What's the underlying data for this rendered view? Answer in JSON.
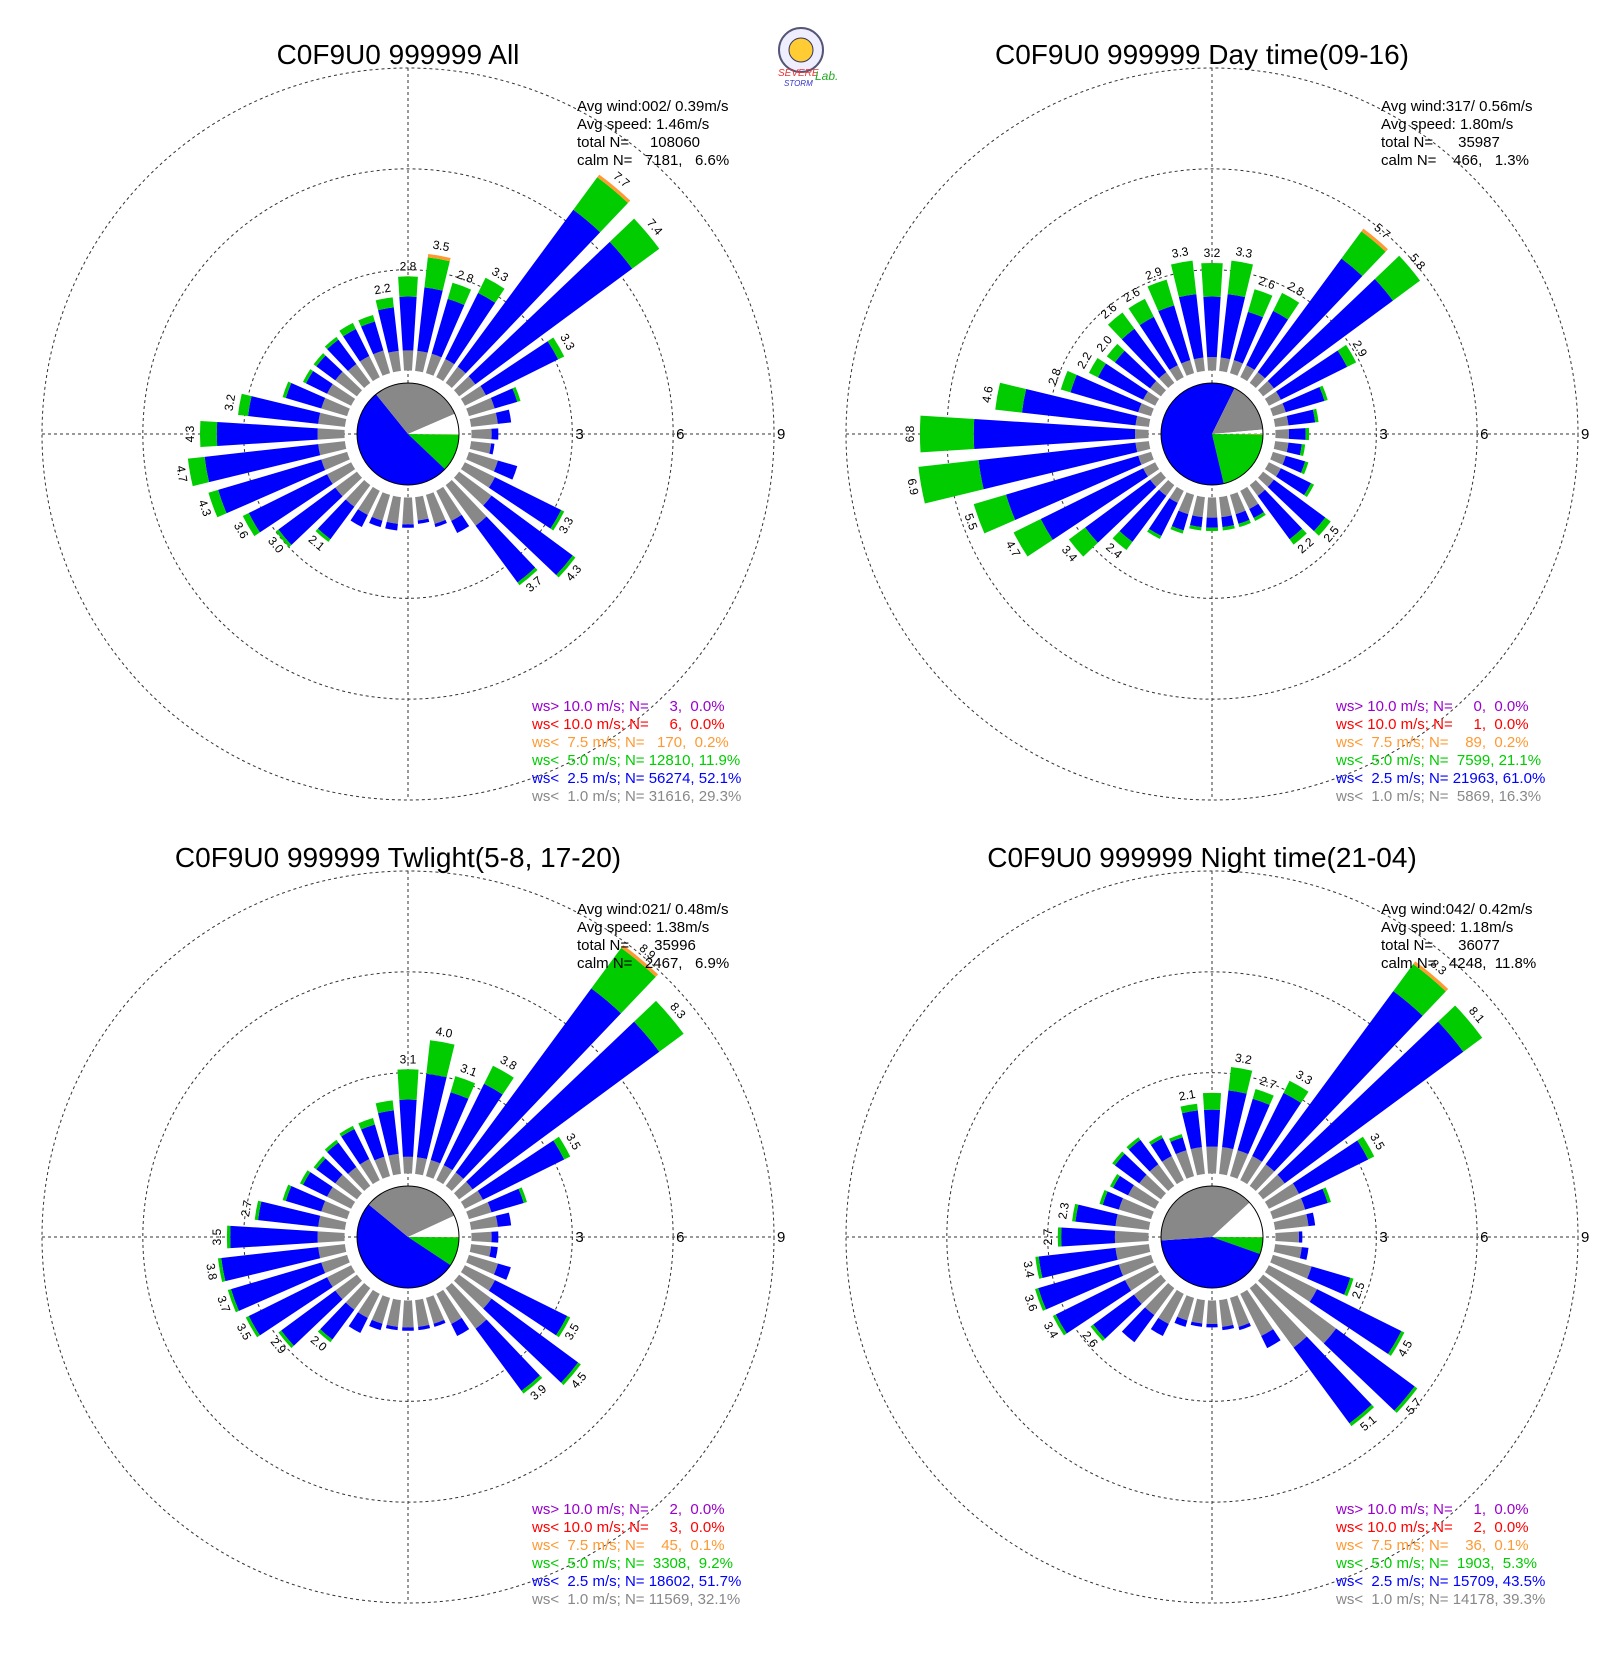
{
  "logo": [
    "SEVERE",
    "STORM",
    "Lab."
  ],
  "chart_data": [
    {
      "type": "windrose",
      "title": "C0F9U0 999999 All",
      "info": [
        "Avg wind:002/ 0.39m/s",
        "Avg speed: 1.46m/s",
        "total N=     108060",
        "calm N=   7181,   6.6%"
      ],
      "legend": [
        {
          "text": "ws> 10.0 m/s; N=     3,  0.0%",
          "color": "#9900cc"
        },
        {
          "text": "ws< 10.0 m/s; N=     6,  0.0%",
          "color": "#ff0000"
        },
        {
          "text": "ws<  7.5 m/s; N=   170,  0.2%",
          "color": "#ff9933"
        },
        {
          "text": "ws<  5.0 m/s; N= 12810, 11.9%",
          "color": "#00cc00"
        },
        {
          "text": "ws<  2.5 m/s; N= 56274, 52.1%",
          "color": "#0000ff"
        },
        {
          "text": "ws<  1.0 m/s; N= 31616, 29.3%",
          "color": "#888888"
        }
      ],
      "rlim": [
        0,
        9
      ],
      "rticks": [
        3,
        6,
        9
      ],
      "calm": 6.6,
      "series": [
        {
          "color": "#888888",
          "share": 29.3,
          "values": [
            0.6,
            0.6,
            0.6,
            0.6,
            0.6,
            0.6,
            0.7,
            0.8,
            0.8,
            0.6,
            0.6,
            0.9,
            1.0,
            1.2,
            1.5,
            1.0,
            0.9,
            0.7,
            0.8,
            0.8,
            0.8,
            0.8,
            0.8,
            0.8,
            0.8,
            0.8,
            0.8,
            0.8,
            0.8,
            0.8,
            0.8,
            0.8,
            0.7,
            0.7,
            0.7,
            0.6
          ]
        },
        {
          "color": "#0000ff",
          "share": 52.1,
          "values": [
            1.6,
            1.9,
            1.7,
            2.2,
            5.8,
            5.8,
            2.4,
            0.7,
            0.4,
            0.2,
            0.1,
            0.6,
            2.2,
            3.0,
            2.1,
            0.4,
            0.1,
            0.1,
            0.1,
            0.2,
            0.2,
            0.4,
            1.2,
            2.1,
            2.6,
            3.2,
            3.4,
            3.0,
            2.1,
            1.1,
            0.7,
            0.7,
            0.9,
            0.9,
            0.9,
            1.3
          ]
        },
        {
          "color": "#00cc00",
          "share": 11.9,
          "values": [
            0.6,
            0.9,
            0.5,
            0.5,
            1.2,
            1.0,
            0.2,
            0.1,
            0,
            0,
            0,
            0,
            0.1,
            0.1,
            0.1,
            0,
            0,
            0,
            0,
            0,
            0,
            0,
            0.1,
            0.1,
            0.2,
            0.3,
            0.5,
            0.5,
            0.3,
            0.1,
            0.1,
            0.1,
            0.1,
            0.2,
            0.2,
            0.3
          ]
        },
        {
          "color": "#ff9933",
          "share": 0.2,
          "values": [
            0,
            0.1,
            0,
            0,
            0.1,
            0,
            0,
            0,
            0,
            0,
            0,
            0,
            0,
            0,
            0,
            0,
            0,
            0,
            0,
            0,
            0,
            0,
            0,
            0,
            0,
            0,
            0,
            0,
            0,
            0,
            0,
            0,
            0,
            0,
            0,
            0
          ]
        }
      ],
      "total_labels": [
        "2.8",
        "3.5",
        "2.8",
        "3.3",
        "7.7",
        "7.4",
        "3.3",
        null,
        null,
        null,
        null,
        null,
        "3.3",
        "4.3",
        "3.7",
        null,
        null,
        null,
        null,
        null,
        null,
        null,
        "2.1",
        "3.0",
        "3.6",
        "4.3",
        "4.7",
        "4.3",
        "3.2",
        null,
        null,
        null,
        null,
        null,
        null,
        "2.2"
      ]
    },
    {
      "type": "windrose",
      "title": "C0F9U0 999999 Day time(09-16)",
      "info": [
        "Avg wind:317/ 0.56m/s",
        "Avg speed: 1.80m/s",
        "total N=      35987",
        "calm N=    466,   1.3%"
      ],
      "legend": [
        {
          "text": "ws> 10.0 m/s; N=     0,  0.0%",
          "color": "#9900cc"
        },
        {
          "text": "ws< 10.0 m/s; N=     1,  0.0%",
          "color": "#ff0000"
        },
        {
          "text": "ws<  7.5 m/s; N=    89,  0.2%",
          "color": "#ff9933"
        },
        {
          "text": "ws<  5.0 m/s; N=  7599, 21.1%",
          "color": "#00cc00"
        },
        {
          "text": "ws<  2.5 m/s; N= 21963, 61.0%",
          "color": "#0000ff"
        },
        {
          "text": "ws<  1.0 m/s; N=  5869, 16.3%",
          "color": "#888888"
        }
      ],
      "rlim": [
        0,
        9
      ],
      "rticks": [
        3,
        6,
        9
      ],
      "calm": 1.3,
      "series": [
        {
          "color": "#888888",
          "share": 16.3,
          "values": [
            0.4,
            0.4,
            0.4,
            0.4,
            0.4,
            0.4,
            0.4,
            0.4,
            0.4,
            0.4,
            0.4,
            0.4,
            0.4,
            0.4,
            0.4,
            0.6,
            0.6,
            0.6,
            0.6,
            0.6,
            0.6,
            0.4,
            0.4,
            0.4,
            0.4,
            0.4,
            0.4,
            0.4,
            0.4,
            0.4,
            0.4,
            0.4,
            0.4,
            0.4,
            0.4,
            0.4
          ]
        },
        {
          "color": "#0000ff",
          "share": 61.0,
          "values": [
            1.8,
            1.9,
            1.5,
            1.8,
            4.2,
            4.4,
            2.2,
            1.2,
            0.8,
            0.5,
            0.4,
            0.6,
            1.0,
            1.9,
            1.6,
            0.3,
            0.3,
            0.3,
            0.3,
            0.3,
            0.5,
            1.1,
            1.7,
            2.4,
            3.4,
            4.1,
            4.7,
            4.8,
            3.4,
            2.1,
            1.5,
            1.3,
            1.6,
            1.6,
            1.7,
            1.9
          ]
        },
        {
          "color": "#00cc00",
          "share": 21.1,
          "values": [
            1.0,
            1.0,
            0.7,
            0.6,
            1.0,
            1.0,
            0.3,
            0.1,
            0.1,
            0.1,
            0.1,
            0.1,
            0.1,
            0.2,
            0.2,
            0.1,
            0.1,
            0.1,
            0.1,
            0.1,
            0.1,
            0.1,
            0.3,
            0.6,
            0.9,
            1.0,
            1.8,
            1.6,
            0.8,
            0.3,
            0.3,
            0.3,
            0.6,
            0.6,
            0.8,
            1.0
          ]
        },
        {
          "color": "#ff9933",
          "share": 0.2,
          "values": [
            0,
            0,
            0,
            0,
            0.1,
            0,
            0,
            0,
            0,
            0,
            0,
            0,
            0,
            0,
            0,
            0,
            0,
            0,
            0,
            0,
            0,
            0,
            0,
            0,
            0,
            0,
            0,
            0,
            0,
            0,
            0,
            0,
            0,
            0,
            0,
            0
          ]
        }
      ],
      "total_labels": [
        "3.2",
        "3.3",
        "2.6",
        "2.8",
        "5.7",
        "5.8",
        "2.9",
        null,
        null,
        null,
        null,
        null,
        null,
        "2.5",
        "2.2",
        null,
        null,
        null,
        null,
        null,
        null,
        null,
        "2.4",
        "3.4",
        "4.7",
        "5.5",
        "6.9",
        "6.8",
        "4.6",
        "2.8",
        "2.2",
        "2.0",
        "2.6",
        "2.6",
        "2.9",
        "3.3"
      ]
    },
    {
      "type": "windrose",
      "title": "C0F9U0 999999 Twlight(5-8, 17-20)",
      "info": [
        "Avg wind:021/ 0.48m/s",
        "Avg speed: 1.38m/s",
        "total N=      35996",
        "calm N=   2467,   6.9%"
      ],
      "legend": [
        {
          "text": "ws> 10.0 m/s; N=     2,  0.0%",
          "color": "#9900cc"
        },
        {
          "text": "ws< 10.0 m/s; N=     3,  0.0%",
          "color": "#ff0000"
        },
        {
          "text": "ws<  7.5 m/s; N=    45,  0.1%",
          "color": "#ff9933"
        },
        {
          "text": "ws<  5.0 m/s; N=  3308,  9.2%",
          "color": "#00cc00"
        },
        {
          "text": "ws<  2.5 m/s; N= 18602, 51.7%",
          "color": "#0000ff"
        },
        {
          "text": "ws<  1.0 m/s; N= 11569, 32.1%",
          "color": "#888888"
        }
      ],
      "rlim": [
        0,
        9
      ],
      "rticks": [
        3,
        6,
        9
      ],
      "calm": 6.9,
      "series": [
        {
          "color": "#888888",
          "share": 32.1,
          "values": [
            0.5,
            0.5,
            0.5,
            0.5,
            0.5,
            0.5,
            0.6,
            0.7,
            0.8,
            0.6,
            0.6,
            0.9,
            1.0,
            1.2,
            1.5,
            1.0,
            0.8,
            0.8,
            0.8,
            0.8,
            0.8,
            0.8,
            0.8,
            0.8,
            0.8,
            0.8,
            0.8,
            0.8,
            0.8,
            0.8,
            0.8,
            0.8,
            0.7,
            0.7,
            0.6,
            0.6
          ]
        },
        {
          "color": "#0000ff",
          "share": 51.7,
          "values": [
            1.7,
            2.5,
            2.1,
            2.7,
            6.8,
            6.9,
            2.7,
            1.0,
            0.4,
            0.2,
            0.2,
            0.4,
            2.4,
            3.2,
            2.3,
            0.4,
            0.1,
            0.1,
            0.1,
            0.1,
            0.2,
            0.5,
            1.1,
            2.0,
            2.6,
            2.8,
            2.9,
            2.6,
            1.8,
            1.1,
            0.8,
            0.7,
            0.9,
            1.0,
            1.0,
            1.3
          ]
        },
        {
          "color": "#00cc00",
          "share": 9.2,
          "values": [
            0.9,
            1.0,
            0.5,
            0.6,
            1.5,
            0.9,
            0.2,
            0.1,
            0,
            0,
            0,
            0,
            0.1,
            0.1,
            0.1,
            0,
            0,
            0,
            0,
            0,
            0,
            0,
            0.1,
            0.1,
            0.1,
            0.1,
            0.1,
            0.1,
            0.1,
            0.1,
            0.1,
            0.1,
            0.1,
            0.1,
            0.2,
            0.3
          ]
        },
        {
          "color": "#ff9933",
          "share": 0.1,
          "values": [
            0,
            0,
            0,
            0,
            0.1,
            0,
            0,
            0,
            0,
            0,
            0,
            0,
            0,
            0,
            0,
            0,
            0,
            0,
            0,
            0,
            0,
            0,
            0,
            0,
            0,
            0,
            0,
            0,
            0,
            0,
            0,
            0,
            0,
            0,
            0,
            0
          ]
        }
      ],
      "total_labels": [
        "3.1",
        "4.0",
        "3.1",
        "3.8",
        "8.9",
        "8.3",
        "3.5",
        null,
        null,
        null,
        null,
        null,
        "3.5",
        "4.5",
        "3.9",
        null,
        null,
        null,
        null,
        null,
        null,
        null,
        "2.0",
        "2.9",
        "3.5",
        "3.7",
        "3.8",
        "3.5",
        "2.7",
        null,
        null,
        null,
        null,
        null,
        null,
        null
      ]
    },
    {
      "type": "windrose",
      "title": "C0F9U0 999999 Night time(21-04)",
      "info": [
        "Avg wind:042/ 0.42m/s",
        "Avg speed: 1.18m/s",
        "total N=      36077",
        "calm N=   4248,  11.8%"
      ],
      "legend": [
        {
          "text": "ws> 10.0 m/s; N=     1,  0.0%",
          "color": "#9900cc"
        },
        {
          "text": "ws< 10.0 m/s; N=     2,  0.0%",
          "color": "#ff0000"
        },
        {
          "text": "ws<  7.5 m/s; N=    36,  0.1%",
          "color": "#ff9933"
        },
        {
          "text": "ws<  5.0 m/s; N=  1903,  5.3%",
          "color": "#00cc00"
        },
        {
          "text": "ws<  2.5 m/s; N= 15709, 43.5%",
          "color": "#0000ff"
        },
        {
          "text": "ws<  1.0 m/s; N= 14178, 39.3%",
          "color": "#888888"
        }
      ],
      "rlim": [
        0,
        9
      ],
      "rticks": [
        3,
        6,
        9
      ],
      "calm": 11.8,
      "series": [
        {
          "color": "#888888",
          "share": 39.3,
          "values": [
            0.8,
            0.8,
            0.8,
            0.8,
            0.8,
            0.8,
            1.0,
            1.0,
            1.0,
            0.7,
            0.8,
            1.2,
            1.6,
            2.7,
            2.2,
            1.4,
            0.9,
            0.8,
            0.7,
            0.7,
            0.7,
            1.0,
            1.0,
            1.0,
            1.0,
            1.0,
            1.0,
            1.0,
            1.0,
            1.0,
            0.9,
            0.8,
            0.8,
            0.8,
            0.8,
            0.8
          ]
        },
        {
          "color": "#0000ff",
          "share": 43.5,
          "values": [
            1.1,
            1.7,
            1.6,
            2.1,
            6.4,
            6.6,
            2.3,
            0.7,
            0.2,
            0.1,
            0.2,
            1.2,
            2.8,
            2.9,
            2.8,
            0.4,
            0.1,
            0.1,
            0.1,
            0.1,
            0.2,
            0.4,
            1.0,
            1.5,
            2.3,
            2.5,
            2.3,
            1.6,
            1.2,
            0.5,
            0.5,
            0.9,
            0.9,
            0.6,
            0.4,
            1.1
          ]
        },
        {
          "color": "#00cc00",
          "share": 5.3,
          "values": [
            0.5,
            0.7,
            0.3,
            0.4,
            1.0,
            0.7,
            0.2,
            0.1,
            0,
            0,
            0,
            0.1,
            0.1,
            0.1,
            0.1,
            0,
            0,
            0,
            0,
            0,
            0,
            0,
            0,
            0.1,
            0.1,
            0.1,
            0.1,
            0.1,
            0.1,
            0.1,
            0.1,
            0.1,
            0.1,
            0.1,
            0.1,
            0.2
          ]
        },
        {
          "color": "#ff9933",
          "share": 0.1,
          "values": [
            0,
            0,
            0,
            0,
            0.1,
            0,
            0,
            0,
            0,
            0,
            0,
            0,
            0,
            0,
            0,
            0,
            0,
            0,
            0,
            0,
            0,
            0,
            0,
            0,
            0,
            0,
            0,
            0,
            0,
            0,
            0,
            0,
            0,
            0,
            0,
            0
          ]
        }
      ],
      "total_labels": [
        null,
        "3.2",
        "2.7",
        "3.3",
        "8.3",
        "8.1",
        "3.5",
        null,
        null,
        null,
        null,
        "2.5",
        "4.5",
        "5.7",
        "5.1",
        null,
        null,
        null,
        null,
        null,
        null,
        null,
        null,
        "2.6",
        "3.4",
        "3.6",
        "3.4",
        "2.7",
        "2.3",
        null,
        null,
        null,
        null,
        null,
        null,
        "2.1"
      ]
    }
  ]
}
